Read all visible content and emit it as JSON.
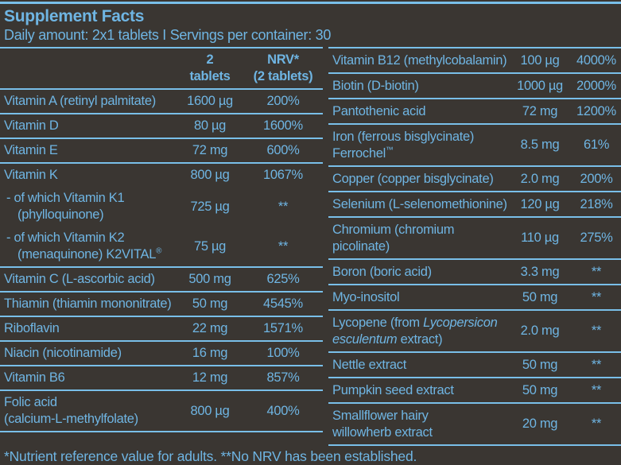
{
  "colors": {
    "background": "#3a3632",
    "text": "#6fb5e3",
    "rule": "#79bfe9"
  },
  "header": {
    "title": "Supplement Facts",
    "daily_amount": "Daily amount: 2x1 tablets I Servings per container: 30"
  },
  "left_table": {
    "amount_header": "2\ntablets",
    "nrv_header": "NRV*\n(2 tablets)",
    "rows": [
      {
        "label": "Vitamin A (retinyl palmitate)",
        "amount": "1600 µg",
        "nrv": "200%",
        "rule": true
      },
      {
        "label": "Vitamin D",
        "amount": "80 µg",
        "nrv": "1600%",
        "rule": true
      },
      {
        "label": "Vitamin E",
        "amount": "72 mg",
        "nrv": "600%",
        "rule": true
      },
      {
        "label": "Vitamin K",
        "amount": "800 µg",
        "nrv": "1067%",
        "rule": true
      },
      {
        "label": "- of which Vitamin K1\n(phylloquinone)",
        "amount": "725 µg",
        "nrv": "**",
        "rule": false,
        "sub": true
      },
      {
        "label_segments": [
          {
            "text": "- of which Vitamin K2\n(menaquinone) K2VITAL"
          },
          {
            "text": "®",
            "sup": true
          }
        ],
        "amount": "75 µg",
        "nrv": "**",
        "rule": false,
        "sub": true
      },
      {
        "label": "Vitamin C (L-ascorbic acid)",
        "amount": "500 mg",
        "nrv": "625%",
        "rule": true
      },
      {
        "label": "Thiamin (thiamin mononitrate)",
        "amount": "50 mg",
        "nrv": "4545%",
        "rule": true
      },
      {
        "label": "Riboflavin",
        "amount": "22 mg",
        "nrv": "1571%",
        "rule": true
      },
      {
        "label": "Niacin (nicotinamide)",
        "amount": "16 mg",
        "nrv": "100%",
        "rule": true
      },
      {
        "label": "Vitamin B6",
        "amount": "12 mg",
        "nrv": "857%",
        "rule": true
      },
      {
        "label": "Folic acid\n(calcium-L-methylfolate)",
        "amount": "800 µg",
        "nrv": "400%",
        "rule": true
      }
    ]
  },
  "right_table": {
    "rows": [
      {
        "label": "Vitamin B12 (methylcobalamin)",
        "amount": "100 µg",
        "nrv": "4000%",
        "rule": false
      },
      {
        "label": "Biotin (D-biotin)",
        "amount": "1000 µg",
        "nrv": "2000%",
        "rule": true
      },
      {
        "label": "Pantothenic acid",
        "amount": "72 mg",
        "nrv": "1200%",
        "rule": true
      },
      {
        "label_segments": [
          {
            "text": "Iron (ferrous bisglycinate)\nFerrochel"
          },
          {
            "text": "™",
            "sup": true
          }
        ],
        "amount": "8.5 mg",
        "nrv": "61%",
        "rule": true
      },
      {
        "label": "Copper (copper bisglycinate)",
        "amount": "2.0 mg",
        "nrv": "200%",
        "rule": true
      },
      {
        "label": "Selenium (L-selenomethionine)",
        "amount": "120 µg",
        "nrv": "218%",
        "rule": true
      },
      {
        "label": "Chromium (chromium picolinate)",
        "amount": "110 µg",
        "nrv": "275%",
        "rule": true
      },
      {
        "label": "Boron (boric acid)",
        "amount": "3.3 mg",
        "nrv": "**",
        "rule": true
      },
      {
        "label": "Myo-inositol",
        "amount": "50 mg",
        "nrv": "**",
        "rule": true
      },
      {
        "label_segments": [
          {
            "text": "Lycopene (from "
          },
          {
            "text": "Lycopersicon",
            "italic": true
          },
          {
            "text": "\n"
          },
          {
            "text": "esculentum",
            "italic": true
          },
          {
            "text": " extract)"
          }
        ],
        "amount": "2.0 mg",
        "nrv": "**",
        "rule": true
      },
      {
        "label": "Nettle extract",
        "amount": "50 mg",
        "nrv": "**",
        "rule": true
      },
      {
        "label": "Pumpkin seed extract",
        "amount": "50 mg",
        "nrv": "**",
        "rule": true
      },
      {
        "label": "Smallflower hairy\nwillowherb extract",
        "amount": "20 mg",
        "nrv": "**",
        "rule": true
      }
    ]
  },
  "footnote": "*Nutrient reference value for adults. **No NRV has been established."
}
